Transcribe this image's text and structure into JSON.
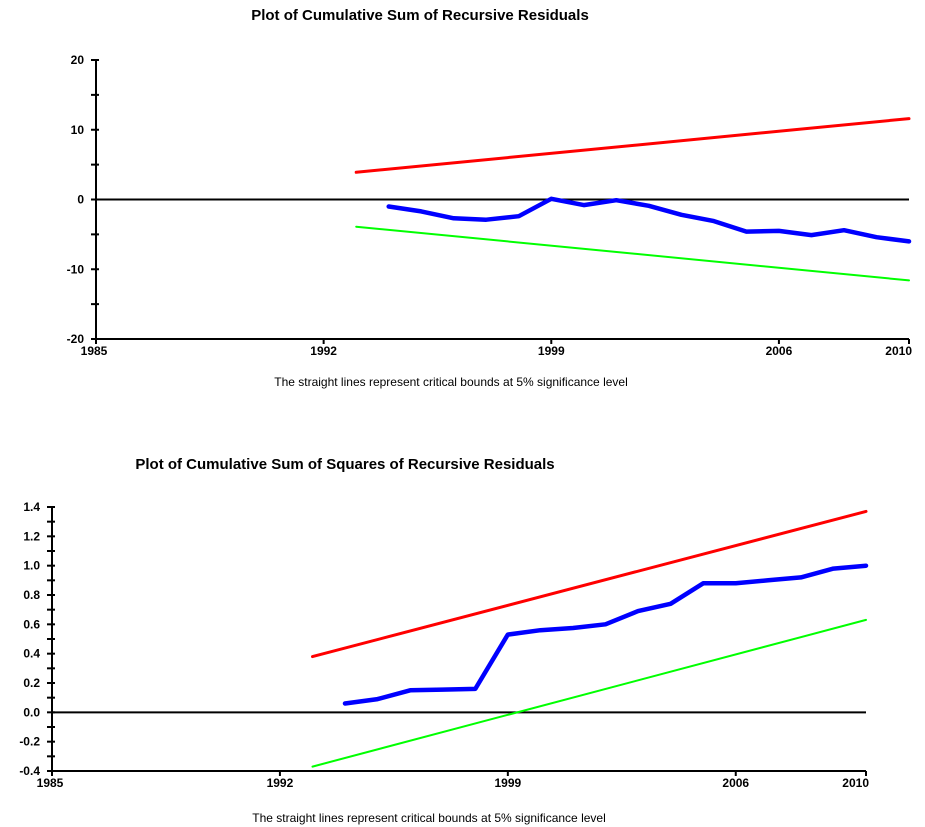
{
  "chart_data": [
    {
      "type": "line",
      "title": "Plot of Cumulative Sum of Recursive Residuals",
      "note": "The straight lines represent critical bounds at 5% significance level",
      "xlabel": "",
      "ylabel": "",
      "xlim": [
        1985,
        2010
      ],
      "ylim": [
        -20,
        20
      ],
      "x_ticks": [
        1985,
        1992,
        1999,
        2006,
        2010
      ],
      "y_ticks": [
        -20,
        -10,
        0,
        10,
        20
      ],
      "y_minor_step": 5,
      "zero_line": true,
      "grid": false,
      "legend": "none",
      "series": [
        {
          "role": "upper-bound",
          "color": "#ff0000",
          "x": [
            1993,
            2010
          ],
          "y": [
            3.9,
            11.6
          ]
        },
        {
          "role": "cusum",
          "color": "#0000ff",
          "x": [
            1994,
            1995,
            1996,
            1997,
            1998,
            1999,
            2000,
            2001,
            2002,
            2003,
            2004,
            2005,
            2006,
            2007,
            2008,
            2009,
            2010
          ],
          "y": [
            -1.0,
            -1.7,
            -2.7,
            -2.9,
            -2.4,
            0.1,
            -0.8,
            -0.1,
            -0.9,
            -2.2,
            -3.1,
            -4.6,
            -4.5,
            -5.1,
            -4.4,
            -5.4,
            -6.0
          ]
        },
        {
          "role": "lower-bound",
          "color": "#00ff00",
          "x": [
            1993,
            2010
          ],
          "y": [
            -3.9,
            -11.6
          ]
        }
      ]
    },
    {
      "type": "line",
      "title": "Plot of Cumulative Sum of Squares of Recursive Residuals",
      "note": "The straight lines represent critical bounds at 5% significance level",
      "xlabel": "",
      "ylabel": "",
      "xlim": [
        1985,
        2010
      ],
      "ylim": [
        -0.4,
        1.4
      ],
      "x_ticks": [
        1985,
        1992,
        1999,
        2006,
        2010
      ],
      "y_ticks": [
        "-0.4",
        "-0.2",
        "0.0",
        "0.2",
        "0.4",
        "0.6",
        "0.8",
        "1.0",
        "1.2",
        "1.4"
      ],
      "y_minor_step": 0.1,
      "zero_line": true,
      "grid": false,
      "legend": "none",
      "series": [
        {
          "role": "upper-bound",
          "color": "#ff0000",
          "x": [
            1993,
            2010
          ],
          "y": [
            0.38,
            1.37
          ]
        },
        {
          "role": "cusumsq",
          "color": "#0000ff",
          "x": [
            1994,
            1995,
            1996,
            1997,
            1998,
            1999,
            2000,
            2001,
            2002,
            2003,
            2004,
            2005,
            2006,
            2007,
            2008,
            2009,
            2010
          ],
          "y": [
            0.06,
            0.09,
            0.15,
            0.155,
            0.16,
            0.53,
            0.56,
            0.575,
            0.6,
            0.69,
            0.74,
            0.88,
            0.88,
            0.9,
            0.92,
            0.98,
            1.0
          ]
        },
        {
          "role": "lower-bound",
          "color": "#00ff00",
          "x": [
            1993,
            2010
          ],
          "y": [
            -0.37,
            0.63
          ]
        }
      ]
    }
  ]
}
